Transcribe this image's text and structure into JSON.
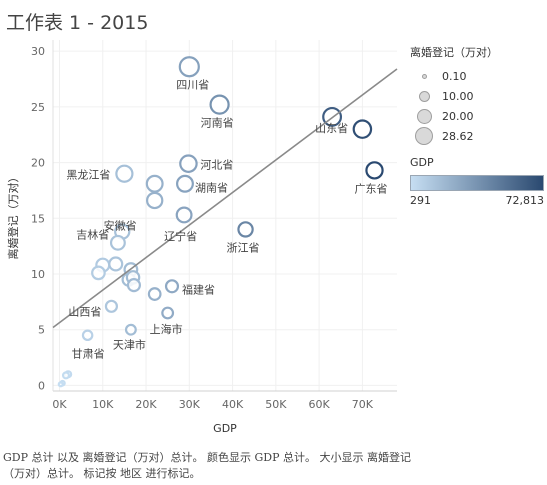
{
  "sheet_title": "工作表 1 - 2015",
  "caption": "GDP 总计 以及 离婚登记（万对）总计。 颜色显示 GDP 总计。 大小显示 离婚登记（万对）总计。 标记按 地区 进行标记。",
  "legend": {
    "size_title": "离婚登记（万对）",
    "size_values": [
      "0.10",
      "10.00",
      "20.00",
      "28.62"
    ],
    "color_title": "GDP",
    "color_min": "291",
    "color_max": "72,813",
    "color_low": "#c6def2",
    "color_high": "#2a4970"
  },
  "chart_data": {
    "type": "scatter",
    "xlabel": "GDP",
    "ylabel": "离婚登记（万对）",
    "xlim": [
      -1500,
      78000
    ],
    "ylim": [
      -0.5,
      31
    ],
    "xticks": [
      0,
      10000,
      20000,
      30000,
      40000,
      50000,
      60000,
      70000
    ],
    "xtick_labels": [
      "0K",
      "10K",
      "20K",
      "30K",
      "40K",
      "50K",
      "60K",
      "70K"
    ],
    "yticks": [
      0,
      5,
      10,
      15,
      20,
      25,
      30
    ],
    "trend_line": {
      "x": [
        -1500,
        78000
      ],
      "y": [
        5.2,
        28.4
      ]
    },
    "points": [
      {
        "label": "四川省",
        "x": 30000,
        "y": 28.6
      },
      {
        "label": "河南省",
        "x": 37000,
        "y": 25.2
      },
      {
        "label": "山东省",
        "x": 63000,
        "y": 24.1
      },
      {
        "label": "",
        "x": 70000,
        "y": 23.0
      },
      {
        "label": "广东省",
        "x": 72800,
        "y": 19.3
      },
      {
        "label": "河北省",
        "x": 29800,
        "y": 19.9
      },
      {
        "label": "黑龙江省",
        "x": 15000,
        "y": 19.0
      },
      {
        "label": "湖南省",
        "x": 29000,
        "y": 18.1
      },
      {
        "label": "",
        "x": 22000,
        "y": 18.1
      },
      {
        "label": "安徽省",
        "x": 22000,
        "y": 16.6
      },
      {
        "label": "辽宁省",
        "x": 28800,
        "y": 15.3
      },
      {
        "label": "浙江省",
        "x": 43000,
        "y": 14.0
      },
      {
        "label": "吉林省",
        "x": 14500,
        "y": 13.8
      },
      {
        "label": "",
        "x": 13500,
        "y": 12.8
      },
      {
        "label": "",
        "x": 10000,
        "y": 10.8
      },
      {
        "label": "",
        "x": 13000,
        "y": 10.9
      },
      {
        "label": "",
        "x": 9000,
        "y": 10.1
      },
      {
        "label": "",
        "x": 16500,
        "y": 10.4
      },
      {
        "label": "",
        "x": 16000,
        "y": 9.5
      },
      {
        "label": "",
        "x": 17000,
        "y": 9.7
      },
      {
        "label": "",
        "x": 17200,
        "y": 9.0
      },
      {
        "label": "福建省",
        "x": 26000,
        "y": 8.9
      },
      {
        "label": "",
        "x": 22000,
        "y": 8.2
      },
      {
        "label": "山西省",
        "x": 12000,
        "y": 7.1
      },
      {
        "label": "上海市",
        "x": 25000,
        "y": 6.5
      },
      {
        "label": "天津市",
        "x": 16500,
        "y": 5.0
      },
      {
        "label": "甘肃省",
        "x": 6500,
        "y": 4.5
      },
      {
        "label": "",
        "x": 2000,
        "y": 1.0
      },
      {
        "label": "",
        "x": 1500,
        "y": 0.9
      },
      {
        "label": "",
        "x": 700,
        "y": 0.2
      },
      {
        "label": "",
        "x": 291,
        "y": 0.1
      }
    ]
  }
}
